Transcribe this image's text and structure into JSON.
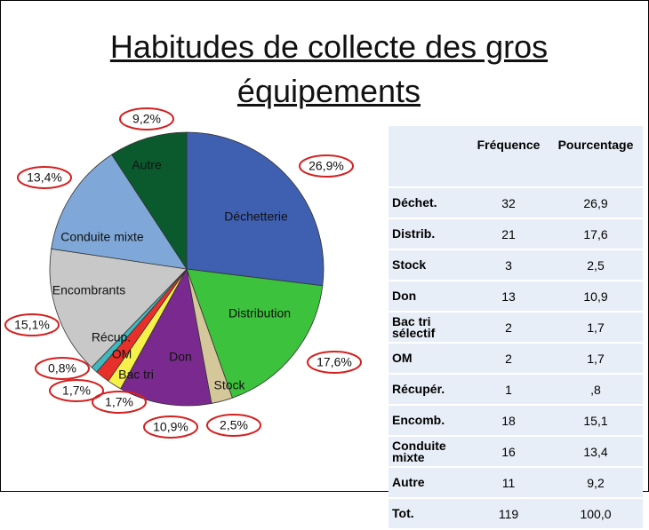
{
  "chart_data": {
    "type": "pie",
    "title": "Habitudes de collecte des gros équipements",
    "categories": [
      "Déchetterie",
      "Distribution",
      "Stock",
      "Don",
      "Bac tri",
      "OM",
      "Récup.",
      "Encombrants",
      "Conduite mixte",
      "Autre"
    ],
    "values": [
      26.9,
      17.6,
      2.5,
      10.9,
      1.7,
      1.7,
      0.8,
      15.1,
      13.4,
      9.2
    ],
    "value_labels": [
      "26,9%",
      "17,6%",
      "2,5%",
      "10,9%",
      "1,7%",
      "1,7%",
      "0,8%",
      "15,1%",
      "13,4%",
      "9,2%"
    ],
    "colors": [
      "#3f5fb0",
      "#3cc23c",
      "#d4c89a",
      "#7a2a8e",
      "#f5f04a",
      "#e8302a",
      "#3fb8c0",
      "#c8c8c8",
      "#7fa8d8",
      "#0b5a2e"
    ]
  },
  "table": {
    "headers": [
      "Fréquence",
      "Pourcentage"
    ],
    "rows": [
      [
        "Déchet.",
        32,
        "26,9"
      ],
      [
        "Distrib.",
        21,
        "17,6"
      ],
      [
        "Stock",
        3,
        "2,5"
      ],
      [
        "Don",
        13,
        "10,9"
      ],
      [
        "Bac tri sélectif",
        2,
        "1,7"
      ],
      [
        "OM",
        2,
        "1,7"
      ],
      [
        "Récupér.",
        1,
        ",8"
      ],
      [
        "Encomb.",
        18,
        "15,1"
      ],
      [
        "Conduite mixte",
        16,
        "13,4"
      ],
      [
        "Autre",
        11,
        "9,2"
      ],
      [
        "Tot.",
        119,
        "100,0"
      ]
    ]
  }
}
